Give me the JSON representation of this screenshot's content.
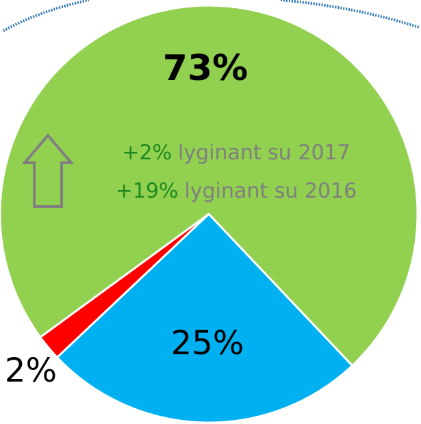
{
  "chart_data": {
    "type": "pie",
    "values": [
      73,
      25,
      2
    ],
    "value_labels": [
      "73%",
      "25%",
      "2%"
    ],
    "colors": [
      "#92d050",
      "#00b0f0",
      "#ff0000"
    ],
    "annotations": [
      [
        "+2%",
        "lyginant su 2017"
      ],
      [
        "+19%",
        "lyginant su 2016"
      ]
    ]
  }
}
